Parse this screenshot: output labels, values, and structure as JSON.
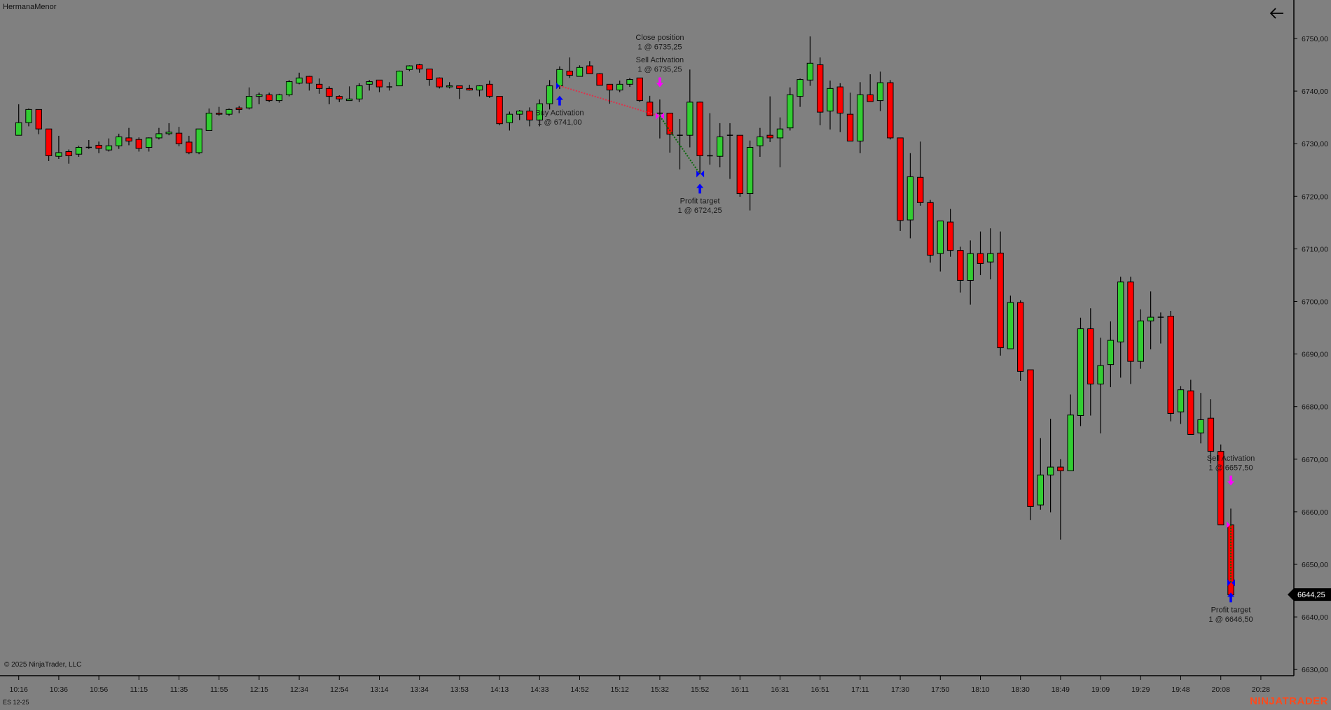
{
  "window": {
    "title": "HermanaMenor",
    "back_icon": "arrow-left-icon"
  },
  "footer": {
    "copyright": "© 2025 NinjaTrader, LLC",
    "instrument": "ES 12-25",
    "brand": "NINJATRADER"
  },
  "colors": {
    "background": "#808080",
    "up": "#32CD32",
    "down": "#FF0000",
    "outline": "#000000",
    "buy_marker": "#0000FF",
    "sell_marker": "#FF00FF",
    "loss_line": "#E0304A",
    "profit_line": "#0A6A0A",
    "brand": "#FF4A1C"
  },
  "chart_data": {
    "type": "candlestick",
    "instrument": "ES 12-25",
    "ylim": [
      6630,
      6750
    ],
    "grid": false,
    "y_ticks": [
      "6750,00",
      "6740,00",
      "6730,00",
      "6720,00",
      "6710,00",
      "6700,00",
      "6690,00",
      "6680,00",
      "6670,00",
      "6660,00",
      "6650,00",
      "6640,00",
      "6630,00"
    ],
    "y_tick_values": [
      6750,
      6740,
      6730,
      6720,
      6710,
      6700,
      6690,
      6680,
      6670,
      6660,
      6650,
      6640,
      6630
    ],
    "x_ticks": [
      "10:16",
      "10:36",
      "10:56",
      "11:15",
      "11:35",
      "11:55",
      "12:15",
      "12:34",
      "12:54",
      "13:14",
      "13:34",
      "13:53",
      "14:13",
      "14:33",
      "14:52",
      "15:12",
      "15:32",
      "15:52",
      "16:11",
      "16:31",
      "16:51",
      "17:11",
      "17:30",
      "17:50",
      "18:10",
      "18:30",
      "18:49",
      "19:09",
      "19:29",
      "19:48",
      "20:08",
      "20:28"
    ],
    "bars_per_x_tick": 4,
    "last_price": 6644.25,
    "last_price_label": "6644,25",
    "ohlc_fields": [
      "open",
      "high",
      "low",
      "close"
    ],
    "candles": [
      [
        6731.6,
        6737.5,
        6731.6,
        6734.0
      ],
      [
        6734.0,
        6736.7,
        6733.3,
        6736.5
      ],
      [
        6736.5,
        6736.5,
        6731.8,
        6732.8
      ],
      [
        6732.8,
        6732.8,
        6726.7,
        6727.7
      ],
      [
        6727.6,
        6731.5,
        6727.1,
        6728.3
      ],
      [
        6728.5,
        6728.9,
        6726.2,
        6727.7
      ],
      [
        6728.0,
        6729.6,
        6727.5,
        6729.3
      ],
      [
        6729.3,
        6730.7,
        6729.0,
        6729.3
      ],
      [
        6729.7,
        6730.4,
        6728.2,
        6729.1
      ],
      [
        6728.8,
        6731.0,
        6728.5,
        6729.6
      ],
      [
        6729.6,
        6731.9,
        6729.0,
        6731.3
      ],
      [
        6731.1,
        6733.0,
        6729.7,
        6730.5
      ],
      [
        6730.8,
        6731.2,
        6728.5,
        6729.1
      ],
      [
        6729.3,
        6731.2,
        6728.5,
        6731.1
      ],
      [
        6731.1,
        6733.0,
        6730.8,
        6731.9
      ],
      [
        6731.9,
        6733.9,
        6731.6,
        6732.2
      ],
      [
        6732.0,
        6733.2,
        6729.5,
        6730.0
      ],
      [
        6730.3,
        6731.5,
        6728.0,
        6728.3
      ],
      [
        6728.3,
        6732.8,
        6728.0,
        6732.8
      ],
      [
        6732.5,
        6736.7,
        6732.5,
        6735.8
      ],
      [
        6735.8,
        6737.0,
        6735.3,
        6735.6
      ],
      [
        6735.6,
        6736.7,
        6735.3,
        6736.5
      ],
      [
        6736.8,
        6737.2,
        6735.8,
        6736.5
      ],
      [
        6736.8,
        6740.7,
        6736.5,
        6739.0
      ],
      [
        6739.0,
        6739.7,
        6737.5,
        6739.3
      ],
      [
        6739.3,
        6739.7,
        6737.9,
        6738.2
      ],
      [
        6738.2,
        6739.5,
        6737.8,
        6739.3
      ],
      [
        6739.3,
        6742.1,
        6739.0,
        6741.8
      ],
      [
        6741.5,
        6743.5,
        6741.3,
        6742.5
      ],
      [
        6742.8,
        6742.9,
        6740.1,
        6741.5
      ],
      [
        6741.3,
        6742.4,
        6739.5,
        6740.5
      ],
      [
        6740.5,
        6740.9,
        6737.5,
        6739.0
      ],
      [
        6739.0,
        6739.2,
        6737.9,
        6738.5
      ],
      [
        6738.2,
        6740.9,
        6738.2,
        6738.5
      ],
      [
        6738.5,
        6741.5,
        6737.9,
        6741.0
      ],
      [
        6741.3,
        6742.1,
        6740.1,
        6741.8
      ],
      [
        6742.1,
        6742.1,
        6739.8,
        6740.8
      ],
      [
        6740.8,
        6741.7,
        6740.1,
        6740.8
      ],
      [
        6741.0,
        6743.9,
        6741.0,
        6743.8
      ],
      [
        6744.1,
        6744.9,
        6743.8,
        6744.8
      ],
      [
        6745.0,
        6745.2,
        6743.5,
        6744.2
      ],
      [
        6744.2,
        6744.2,
        6741.0,
        6742.2
      ],
      [
        6742.5,
        6742.6,
        6740.5,
        6740.8
      ],
      [
        6740.8,
        6741.7,
        6740.5,
        6741.0
      ],
      [
        6741.0,
        6741.0,
        6738.5,
        6740.5
      ],
      [
        6740.5,
        6741.2,
        6740.1,
        6740.2
      ],
      [
        6740.2,
        6741.1,
        6739.0,
        6741.0
      ],
      [
        6741.3,
        6742.0,
        6738.7,
        6739.0
      ],
      [
        6739.0,
        6739.0,
        6733.5,
        6733.8
      ],
      [
        6734.0,
        6736.1,
        6732.5,
        6735.6
      ],
      [
        6735.6,
        6736.4,
        6734.5,
        6736.2
      ],
      [
        6736.2,
        6736.9,
        6733.3,
        6734.5
      ],
      [
        6734.5,
        6738.4,
        6733.3,
        6737.6
      ],
      [
        6737.6,
        6742.1,
        6736.5,
        6741.0
      ],
      [
        6741.0,
        6744.7,
        6740.4,
        6744.1
      ],
      [
        6743.8,
        6746.4,
        6742.5,
        6743.0
      ],
      [
        6742.8,
        6744.9,
        6742.8,
        6744.5
      ],
      [
        6744.8,
        6745.7,
        6743.3,
        6743.3
      ],
      [
        6743.3,
        6743.4,
        6741.1,
        6741.1
      ],
      [
        6741.3,
        6741.3,
        6737.6,
        6740.2
      ],
      [
        6740.2,
        6742.0,
        6739.8,
        6741.3
      ],
      [
        6741.3,
        6742.5,
        6740.8,
        6742.2
      ],
      [
        6742.5,
        6742.5,
        6737.9,
        6738.2
      ],
      [
        6737.9,
        6739.1,
        6735.3,
        6735.3
      ],
      [
        6735.8,
        6738.4,
        6731.0,
        6735.8
      ],
      [
        6735.8,
        6735.8,
        6728.3,
        6731.8
      ],
      [
        6731.6,
        6734.7,
        6725.1,
        6731.6
      ],
      [
        6731.6,
        6744.1,
        6729.3,
        6737.9
      ],
      [
        6737.9,
        6738.0,
        6724.2,
        6727.7
      ],
      [
        6727.7,
        6735.8,
        6726.0,
        6727.7
      ],
      [
        6727.6,
        6733.9,
        6725.5,
        6731.3
      ],
      [
        6731.6,
        6733.9,
        6723.3,
        6731.6
      ],
      [
        6731.6,
        6731.6,
        6719.9,
        6720.5
      ],
      [
        6720.5,
        6730.6,
        6717.3,
        6729.3
      ],
      [
        6729.6,
        6733.0,
        6727.5,
        6731.3
      ],
      [
        6731.6,
        6739.0,
        6730.3,
        6731.1
      ],
      [
        6731.1,
        6735.0,
        6725.5,
        6732.8
      ],
      [
        6733.0,
        6740.7,
        6732.5,
        6739.3
      ],
      [
        6739.0,
        6742.4,
        6737.0,
        6742.2
      ],
      [
        6742.1,
        6750.4,
        6741.0,
        6745.3
      ],
      [
        6745.0,
        6746.4,
        6733.5,
        6736.0
      ],
      [
        6736.2,
        6742.0,
        6732.7,
        6740.5
      ],
      [
        6740.8,
        6741.5,
        6732.2,
        6735.8
      ],
      [
        6735.6,
        6739.7,
        6730.5,
        6730.5
      ],
      [
        6730.5,
        6741.7,
        6728.2,
        6739.3
      ],
      [
        6739.3,
        6743.2,
        6738.0,
        6738.0
      ],
      [
        6738.2,
        6743.7,
        6736.2,
        6741.6
      ],
      [
        6741.6,
        6742.1,
        6730.8,
        6731.1
      ],
      [
        6731.1,
        6731.1,
        6713.4,
        6715.4
      ],
      [
        6715.5,
        6728.2,
        6712.0,
        6723.7
      ],
      [
        6723.6,
        6730.4,
        6718.2,
        6718.8
      ],
      [
        6718.8,
        6719.3,
        6707.4,
        6708.8
      ],
      [
        6709.1,
        6715.3,
        6705.7,
        6715.3
      ],
      [
        6715.1,
        6717.6,
        6708.5,
        6709.7
      ],
      [
        6709.7,
        6710.4,
        6701.7,
        6704.0
      ],
      [
        6704.0,
        6711.6,
        6699.4,
        6709.1
      ],
      [
        6709.1,
        6713.3,
        6705.0,
        6707.2
      ],
      [
        6707.5,
        6713.9,
        6704.2,
        6709.1
      ],
      [
        6709.2,
        6713.3,
        6689.7,
        6691.2
      ],
      [
        6691.0,
        6701.1,
        6691.0,
        6699.8
      ],
      [
        6699.8,
        6700.2,
        6684.9,
        6686.7
      ],
      [
        6687.0,
        6687.0,
        6658.4,
        6661.0
      ],
      [
        6661.3,
        6674.0,
        6660.4,
        6667.0
      ],
      [
        6667.0,
        6677.7,
        6659.9,
        6668.5
      ],
      [
        6668.5,
        6670.0,
        6654.7,
        6667.8
      ],
      [
        6667.8,
        6682.3,
        6667.8,
        6678.4
      ],
      [
        6678.3,
        6696.9,
        6676.3,
        6694.8
      ],
      [
        6694.8,
        6698.7,
        6678.3,
        6684.3
      ],
      [
        6684.3,
        6693.1,
        6674.9,
        6687.8
      ],
      [
        6688.0,
        6696.2,
        6683.7,
        6692.6
      ],
      [
        6692.3,
        6704.7,
        6685.5,
        6703.7
      ],
      [
        6703.7,
        6704.7,
        6684.3,
        6688.6
      ],
      [
        6688.6,
        6698.5,
        6687.2,
        6696.3
      ],
      [
        6696.3,
        6701.9,
        6690.9,
        6697.0
      ],
      [
        6697.0,
        6697.9,
        6692.0,
        6697.0
      ],
      [
        6697.2,
        6698.2,
        6677.2,
        6678.7
      ],
      [
        6679.0,
        6683.9,
        6676.7,
        6683.2
      ],
      [
        6683.0,
        6685.1,
        6674.7,
        6674.7
      ],
      [
        6675.0,
        6682.6,
        6673.0,
        6677.5
      ],
      [
        6677.8,
        6681.4,
        6669.2,
        6671.5
      ],
      [
        6671.5,
        6672.8,
        6657.5,
        6657.5
      ],
      [
        6657.5,
        6660.6,
        6643.2,
        6644.2
      ]
    ],
    "executions": [
      {
        "bar": 54,
        "price": 6741.0,
        "side": "buy",
        "lines": [
          "Buy Activation",
          "1 @ 6741,00"
        ]
      },
      {
        "bar": 64,
        "price": 6735.25,
        "side": "sell",
        "lines": [
          "Close position",
          "1 @ 6735,25",
          "Sell Activation",
          "1 @ 6735,25"
        ]
      },
      {
        "bar": 68,
        "price": 6724.25,
        "side": "buy",
        "lines": [
          "Profit target",
          "1 @ 6724,25"
        ]
      },
      {
        "bar": 121,
        "price": 6657.5,
        "side": "sell",
        "lines": [
          "Sell Activation",
          "1 @ 6657,50"
        ]
      },
      {
        "bar": 121,
        "price": 6646.5,
        "side": "buy",
        "lines": [
          "Profit target",
          "1 @ 6646,50"
        ]
      }
    ],
    "trade_lines": [
      {
        "from_bar": 54,
        "from_price": 6741.0,
        "to_bar": 64,
        "to_price": 6735.25,
        "result": "loss"
      },
      {
        "from_bar": 64,
        "from_price": 6735.25,
        "to_bar": 68,
        "to_price": 6724.25,
        "result": "profit"
      },
      {
        "from_bar": 121,
        "from_price": 6657.5,
        "to_bar": 121,
        "to_price": 6646.5,
        "result": "profit"
      }
    ]
  }
}
